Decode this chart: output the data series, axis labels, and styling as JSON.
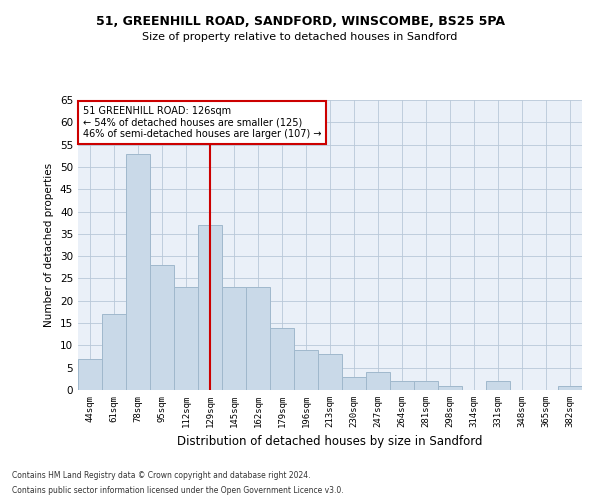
{
  "title1": "51, GREENHILL ROAD, SANDFORD, WINSCOMBE, BS25 5PA",
  "title2": "Size of property relative to detached houses in Sandford",
  "xlabel": "Distribution of detached houses by size in Sandford",
  "ylabel": "Number of detached properties",
  "categories": [
    "44sqm",
    "61sqm",
    "78sqm",
    "95sqm",
    "112sqm",
    "129sqm",
    "145sqm",
    "162sqm",
    "179sqm",
    "196sqm",
    "213sqm",
    "230sqm",
    "247sqm",
    "264sqm",
    "281sqm",
    "298sqm",
    "314sqm",
    "331sqm",
    "348sqm",
    "365sqm",
    "382sqm"
  ],
  "values": [
    7,
    17,
    53,
    28,
    23,
    37,
    23,
    23,
    14,
    9,
    8,
    3,
    4,
    2,
    2,
    1,
    0,
    2,
    0,
    0,
    1
  ],
  "bar_color": "#c9d9e8",
  "bar_edge_color": "#a0b8cc",
  "vline_color": "#cc0000",
  "vline_x": 5,
  "annotation_text": "51 GREENHILL ROAD: 126sqm\n← 54% of detached houses are smaller (125)\n46% of semi-detached houses are larger (107) →",
  "annotation_box_color": "#ffffff",
  "annotation_box_edge_color": "#cc0000",
  "ylim": [
    0,
    65
  ],
  "yticks": [
    0,
    5,
    10,
    15,
    20,
    25,
    30,
    35,
    40,
    45,
    50,
    55,
    60,
    65
  ],
  "bg_color": "#eaf0f8",
  "footer_line1": "Contains HM Land Registry data © Crown copyright and database right 2024.",
  "footer_line2": "Contains public sector information licensed under the Open Government Licence v3.0."
}
